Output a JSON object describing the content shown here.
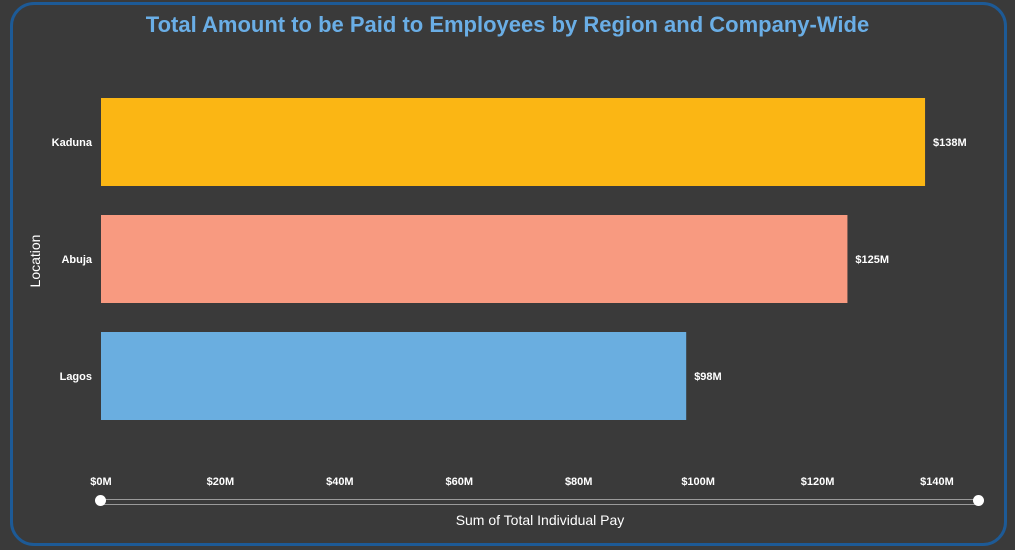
{
  "chart_data": {
    "type": "bar",
    "orientation": "horizontal",
    "title": "Total Amount to be Paid to Employees by Region and Company-Wide",
    "xlabel": "Sum of Total Individual Pay",
    "ylabel": "Location",
    "categories": [
      "Kaduna",
      "Abuja",
      "Lagos"
    ],
    "values": [
      138,
      125,
      98
    ],
    "value_labels": [
      "$138M",
      "$125M",
      "$98M"
    ],
    "colors": [
      "#fbb614",
      "#f89a80",
      "#6aaee0"
    ],
    "xlim": [
      0,
      142
    ],
    "xticks": [
      0,
      20,
      40,
      60,
      80,
      100,
      120,
      140
    ],
    "xtick_labels": [
      "$0M",
      "$20M",
      "$40M",
      "$60M",
      "$80M",
      "$100M",
      "$120M",
      "$140M"
    ],
    "grid": false,
    "legend": "none"
  },
  "zoom_slider": {
    "start": 0,
    "end": 1
  }
}
